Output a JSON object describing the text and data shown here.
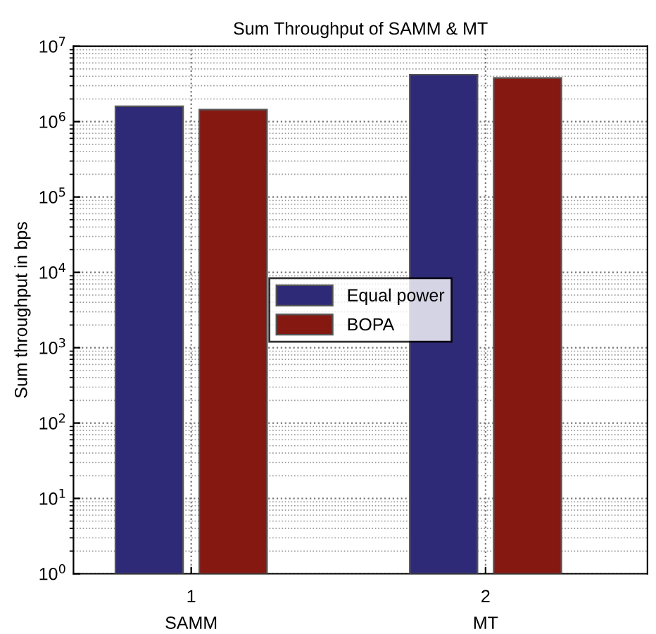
{
  "chart_data": {
    "type": "bar",
    "title": "Sum Throughput of SAMM & MT",
    "ylabel": "Sum throughput in bps",
    "categories": [
      "1\nSAMM",
      "2\nMT"
    ],
    "series": [
      {
        "name": "Equal power",
        "color": "#2e2a78",
        "values": [
          1600000,
          4200000
        ]
      },
      {
        "name": "BOPA",
        "color": "#861812",
        "values": [
          1440000,
          3800000
        ]
      }
    ],
    "log": "y",
    "ylim": [
      1,
      10000000
    ],
    "yticks": [
      {
        "value": 1,
        "label": "10$^{0}$"
      },
      {
        "value": 10,
        "label": "10$^{1}$"
      },
      {
        "value": 100,
        "label": "10$^{2}$"
      },
      {
        "value": 1000,
        "label": "10$^{3}$"
      },
      {
        "value": 10000,
        "label": "10$^{4}$"
      },
      {
        "value": 100000,
        "label": "10$^{5}$"
      },
      {
        "value": 1000000,
        "label": "10$^{6}$"
      },
      {
        "value": 10000000,
        "label": "10$^{7}$"
      }
    ],
    "grid": true,
    "legend": "center"
  }
}
